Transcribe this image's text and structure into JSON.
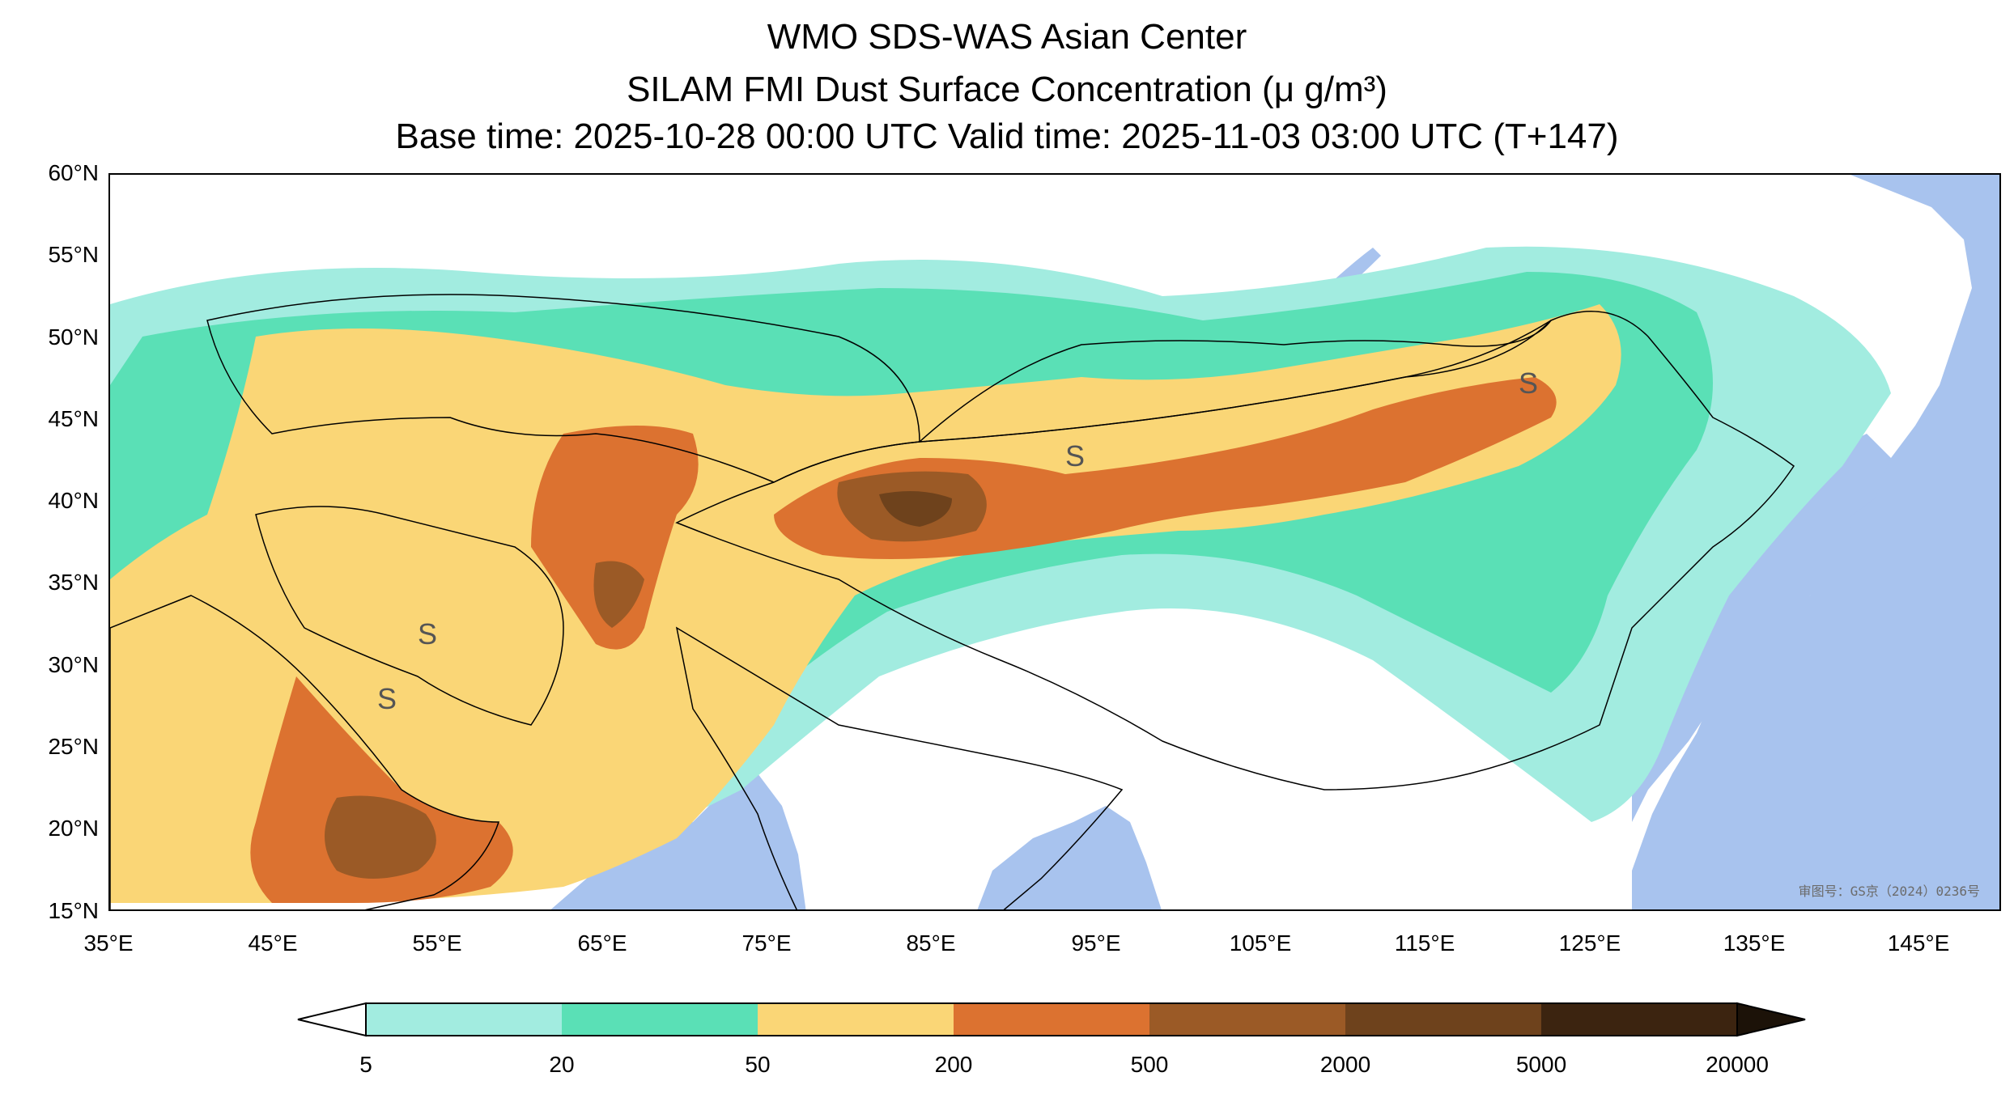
{
  "title": {
    "line1": "WMO SDS-WAS Asian Center",
    "line2": "SILAM FMI Dust Surface Concentration (μ g/m³)",
    "line3": "Base time: 2025-10-28 00:00 UTC Valid time: 2025-11-03 03:00 UTC (T+147)"
  },
  "map": {
    "lon_range": [
      35,
      150
    ],
    "lat_range": [
      15,
      60
    ],
    "lat_labels": [
      "60°N",
      "55°N",
      "50°N",
      "45°N",
      "40°N",
      "35°N",
      "30°N",
      "25°N",
      "20°N",
      "15°N"
    ],
    "lon_labels": [
      "35°E",
      "45°E",
      "55°E",
      "65°E",
      "75°E",
      "85°E",
      "95°E",
      "105°E",
      "115°E",
      "125°E",
      "135°E",
      "145°E"
    ],
    "watermark": "审图号：GS京（2024）0236号",
    "colors": {
      "water": "#a8c3ee",
      "land": "#ffffff",
      "borders": "#000000"
    }
  },
  "colorbar": {
    "labels": [
      "5",
      "20",
      "50",
      "200",
      "500",
      "2000",
      "5000",
      "20000"
    ],
    "colors": [
      "#a2ece0",
      "#5ae0b6",
      "#fad676",
      "#dc7230",
      "#9b5a26",
      "#6e421c",
      "#3c2410"
    ],
    "under_color": "#ffffff",
    "over_color": "#1c1208"
  }
}
